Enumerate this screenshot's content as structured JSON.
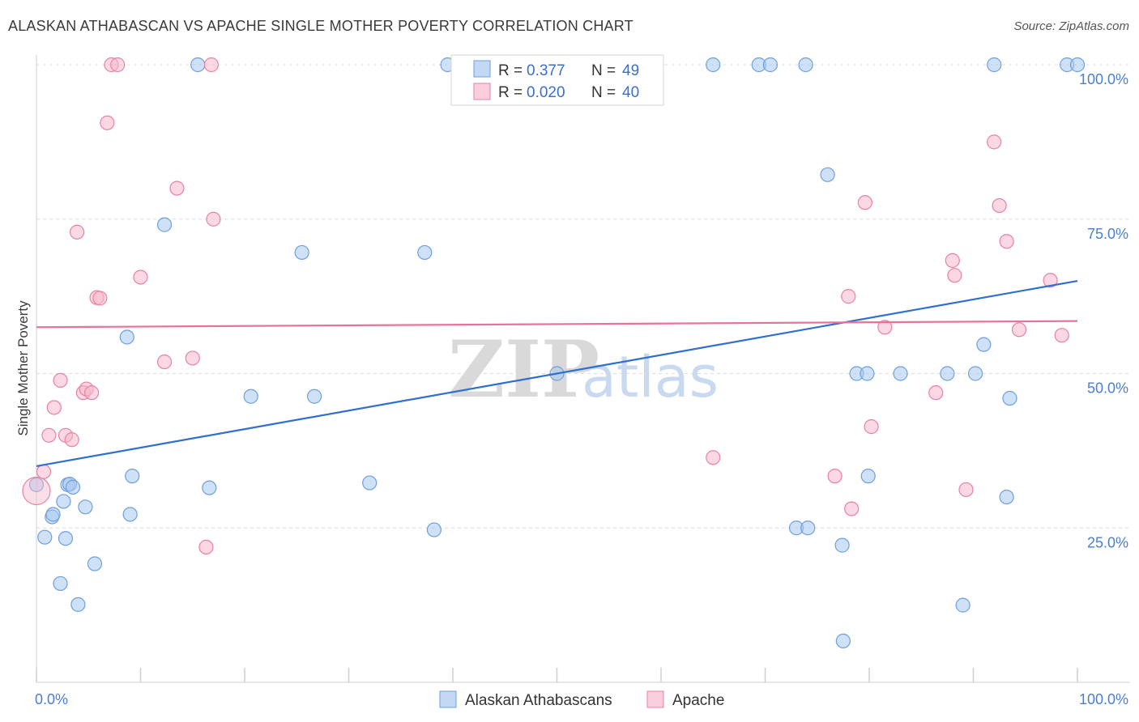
{
  "title": "ALASKAN ATHABASCAN VS APACHE SINGLE MOTHER POVERTY CORRELATION CHART",
  "source": "Source: ZipAtlas.com",
  "chart_data": {
    "type": "scatter",
    "title": "ALASKAN ATHABASCAN VS APACHE SINGLE MOTHER POVERTY CORRELATION CHART",
    "xlabel": "",
    "ylabel": "Single Mother Poverty",
    "xlim": [
      0,
      100
    ],
    "ylim": [
      0,
      100
    ],
    "x_tick_labels": [
      "0.0%",
      "100.0%"
    ],
    "y_tick_labels": [
      {
        "value": 25,
        "label": "25.0%"
      },
      {
        "value": 50,
        "label": "50.0%"
      },
      {
        "value": 75,
        "label": "75.0%"
      },
      {
        "value": 100,
        "label": "100.0%"
      }
    ],
    "legend_stats": [
      {
        "r_label": "R =",
        "r_value": "0.377",
        "n_label": "N =",
        "n_value": "49"
      },
      {
        "r_label": "R =",
        "r_value": "0.020",
        "n_label": "N =",
        "n_value": "40"
      }
    ],
    "series": [
      {
        "name": "Alaskan Athabascans",
        "color": "#a8c8f0",
        "stroke": "#6f9fdc",
        "trend_color": "#2f6fce",
        "trend": [
          [
            0,
            35
          ],
          [
            100,
            65
          ]
        ],
        "points": [
          [
            0,
            32
          ],
          [
            0.8,
            23.5
          ],
          [
            1.5,
            26.8
          ],
          [
            1.6,
            27.2
          ],
          [
            2.3,
            16
          ],
          [
            2.6,
            29.3
          ],
          [
            2.8,
            23.3
          ],
          [
            3.0,
            32
          ],
          [
            3.2,
            32.1
          ],
          [
            3.5,
            31.6
          ],
          [
            4.0,
            12.6
          ],
          [
            4.7,
            28.4
          ],
          [
            5.6,
            19.2
          ],
          [
            8.7,
            55.9
          ],
          [
            9.0,
            27.2
          ],
          [
            9.2,
            33.4
          ],
          [
            12.3,
            74.1
          ],
          [
            15.5,
            100
          ],
          [
            16.6,
            31.5
          ],
          [
            20.6,
            46.3
          ],
          [
            25.5,
            69.6
          ],
          [
            26.7,
            46.3
          ],
          [
            32.0,
            32.3
          ],
          [
            37.3,
            69.6
          ],
          [
            38.2,
            24.7
          ],
          [
            39.5,
            100
          ],
          [
            50.0,
            50
          ],
          [
            65.0,
            100
          ],
          [
            69.4,
            100
          ],
          [
            70.5,
            100
          ],
          [
            73.9,
            100
          ],
          [
            76.0,
            82.2
          ],
          [
            73.0,
            25
          ],
          [
            74.1,
            25
          ],
          [
            77.4,
            22.2
          ],
          [
            77.5,
            6.7
          ],
          [
            78.8,
            50
          ],
          [
            79.8,
            50
          ],
          [
            79.9,
            33.4
          ],
          [
            83.0,
            50
          ],
          [
            87.5,
            50
          ],
          [
            89.0,
            12.5
          ],
          [
            90.2,
            50
          ],
          [
            91.0,
            54.7
          ],
          [
            92.0,
            100
          ],
          [
            93.2,
            30
          ],
          [
            93.5,
            46
          ],
          [
            99.0,
            100
          ],
          [
            100,
            100
          ]
        ]
      },
      {
        "name": "Apache",
        "color": "#f7b8cc",
        "stroke": "#e8829f",
        "trend_color": "#e8739a",
        "trend": [
          [
            0,
            57.5
          ],
          [
            100,
            58.5
          ]
        ],
        "points": [
          [
            0,
            31
          ],
          [
            0.7,
            34.1
          ],
          [
            1.2,
            40
          ],
          [
            1.7,
            44.5
          ],
          [
            2.3,
            48.9
          ],
          [
            2.8,
            40
          ],
          [
            3.4,
            39.3
          ],
          [
            3.9,
            72.9
          ],
          [
            4.5,
            46.9
          ],
          [
            4.8,
            47.5
          ],
          [
            5.3,
            46.9
          ],
          [
            5.8,
            62.3
          ],
          [
            6.1,
            62.2
          ],
          [
            6.8,
            90.6
          ],
          [
            7.2,
            100
          ],
          [
            7.8,
            100
          ],
          [
            10.0,
            65.6
          ],
          [
            12.3,
            51.9
          ],
          [
            13.5,
            80
          ],
          [
            15.0,
            52.5
          ],
          [
            16.3,
            21.9
          ],
          [
            16.8,
            100
          ],
          [
            17.0,
            75
          ],
          [
            65.0,
            36.4
          ],
          [
            76.7,
            33.4
          ],
          [
            78.0,
            62.5
          ],
          [
            78.3,
            28.1
          ],
          [
            79.6,
            77.7
          ],
          [
            80.2,
            41.4
          ],
          [
            81.5,
            57.5
          ],
          [
            86.4,
            46.9
          ],
          [
            88.0,
            68.3
          ],
          [
            88.2,
            65.9
          ],
          [
            89.3,
            31.2
          ],
          [
            92.0,
            87.5
          ],
          [
            92.5,
            77.2
          ],
          [
            93.2,
            71.4
          ],
          [
            94.4,
            57.1
          ],
          [
            97.4,
            65.1
          ],
          [
            98.5,
            56.2
          ]
        ]
      }
    ],
    "legend": [
      "Alaskan Athabascans",
      "Apache"
    ],
    "watermark": {
      "zip": "ZIP",
      "atlas": "atlas"
    }
  }
}
